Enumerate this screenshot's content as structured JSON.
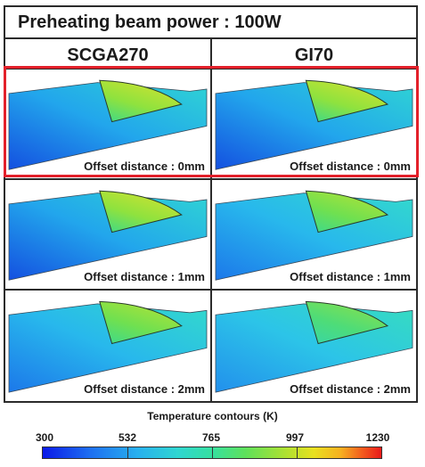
{
  "title": "Preheating beam power : 100W",
  "columns": [
    "SCGA270",
    "GI70"
  ],
  "cells": [
    {
      "row": 0,
      "col": 0,
      "label": "Offset distance : 0mm",
      "scheme": "hot"
    },
    {
      "row": 0,
      "col": 1,
      "label": "Offset distance : 0mm",
      "scheme": "hot"
    },
    {
      "row": 1,
      "col": 0,
      "label": "Offset distance : 1mm",
      "scheme": "hot"
    },
    {
      "row": 1,
      "col": 1,
      "label": "Offset distance : 1mm",
      "scheme": "mid"
    },
    {
      "row": 2,
      "col": 0,
      "label": "Offset distance : 2mm",
      "scheme": "mid"
    },
    {
      "row": 2,
      "col": 1,
      "label": "Offset distance : 2mm",
      "scheme": "cool"
    }
  ],
  "highlighted_row": 0,
  "legend": {
    "title": "Temperature contours (K)",
    "ticks": [
      "300",
      "532",
      "765",
      "997",
      "1230"
    ]
  },
  "colors": {
    "frame": "#2b2b2b",
    "highlight": "#e3202a"
  }
}
